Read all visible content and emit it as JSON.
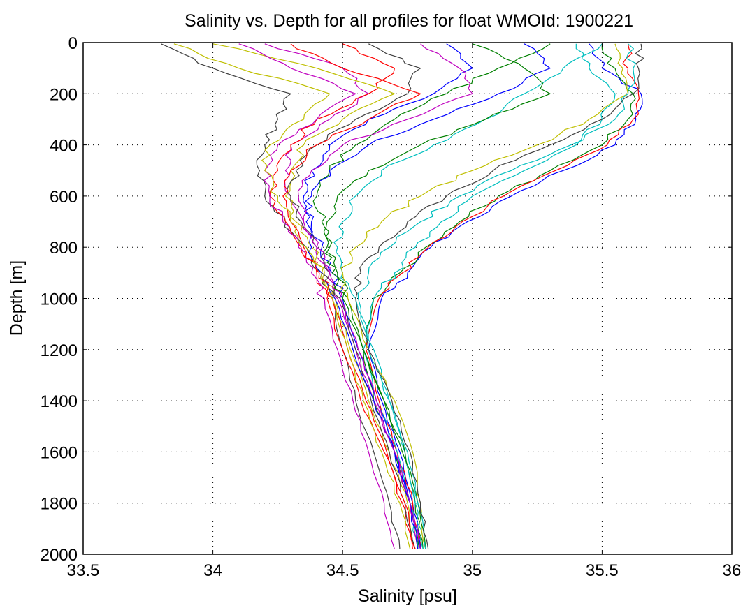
{
  "chart_data": {
    "type": "line",
    "title": "Salinity vs. Depth for all profiles for float WMOId: 1900221",
    "xlabel": "Salinity [psu]",
    "ylabel": "Depth [m]",
    "xlim": [
      33.5,
      36
    ],
    "ylim": [
      0,
      2000
    ],
    "y_reversed": true,
    "x_ticks": [
      "33.5",
      "34",
      "34.5",
      "35",
      "35.5",
      "36"
    ],
    "y_ticks": [
      "0",
      "200",
      "400",
      "600",
      "800",
      "1000",
      "1200",
      "1400",
      "1600",
      "1800",
      "2000"
    ],
    "grid": true,
    "legend": "none",
    "series_colors": [
      "#0000ff",
      "#008000",
      "#ff0000",
      "#00bfbf",
      "#bf00bf",
      "#bfbf00",
      "#404040"
    ],
    "series": [
      {
        "depth": [
          5,
          100,
          200,
          300,
          400,
          500,
          600,
          700,
          800,
          900,
          1000,
          1200,
          1400,
          1600,
          1800,
          1980
        ],
        "salinity": [
          35.45,
          35.5,
          35.65,
          35.63,
          35.55,
          35.35,
          35.15,
          34.98,
          34.84,
          34.75,
          34.65,
          34.6,
          34.65,
          34.72,
          34.77,
          34.8
        ]
      },
      {
        "depth": [
          5,
          100,
          200,
          300,
          400,
          500,
          600,
          700,
          800,
          900,
          1000,
          1200,
          1400,
          1600,
          1800,
          1980
        ],
        "salinity": [
          35.5,
          35.55,
          35.62,
          35.6,
          35.5,
          35.3,
          35.1,
          34.95,
          34.82,
          34.72,
          34.62,
          34.58,
          34.62,
          34.7,
          34.76,
          34.79
        ]
      },
      {
        "depth": [
          5,
          100,
          200,
          300,
          400,
          500,
          600,
          700,
          800,
          900,
          1000,
          1200,
          1400,
          1600,
          1800,
          1980
        ],
        "salinity": [
          35.6,
          35.6,
          35.64,
          35.62,
          35.52,
          35.32,
          35.12,
          34.96,
          34.83,
          34.73,
          34.64,
          34.59,
          34.64,
          34.71,
          34.77,
          34.8
        ]
      },
      {
        "depth": [
          5,
          100,
          200,
          300,
          400,
          500,
          600,
          700,
          800,
          900,
          1000,
          1200,
          1400,
          1600,
          1800,
          1980
        ],
        "salinity": [
          35.4,
          35.45,
          35.55,
          35.5,
          35.4,
          35.2,
          35.0,
          34.88,
          34.78,
          34.7,
          34.62,
          34.58,
          34.63,
          34.71,
          34.76,
          34.79
        ]
      },
      {
        "depth": [
          5,
          100,
          200,
          300,
          400,
          500,
          600,
          700,
          800,
          900,
          1000,
          1200,
          1400,
          1600,
          1800,
          1980
        ],
        "salinity": [
          34.2,
          34.5,
          34.6,
          34.45,
          34.3,
          34.28,
          34.3,
          34.35,
          34.4,
          34.45,
          34.48,
          34.55,
          34.62,
          34.7,
          34.76,
          34.79
        ]
      },
      {
        "depth": [
          5,
          100,
          200,
          300,
          400,
          500,
          600,
          700,
          800,
          900,
          1000,
          1200,
          1400,
          1600,
          1800,
          1980
        ],
        "salinity": [
          34.0,
          34.4,
          34.7,
          34.5,
          34.35,
          34.3,
          34.28,
          34.32,
          34.38,
          34.43,
          34.47,
          34.53,
          34.6,
          34.68,
          34.75,
          34.78
        ]
      },
      {
        "depth": [
          5,
          100,
          200,
          300,
          400,
          500,
          600,
          700,
          800,
          900,
          1000,
          1200,
          1400,
          1600,
          1800,
          1980
        ],
        "salinity": [
          33.8,
          34.0,
          34.3,
          34.25,
          34.2,
          34.18,
          34.2,
          34.28,
          34.36,
          34.42,
          34.46,
          34.5,
          34.55,
          34.62,
          34.68,
          34.72
        ]
      },
      {
        "depth": [
          5,
          100,
          200,
          300,
          400,
          500,
          600,
          700,
          800,
          900,
          1000,
          1200,
          1400,
          1600,
          1800,
          1980
        ],
        "salinity": [
          34.9,
          35.0,
          34.85,
          34.6,
          34.45,
          34.38,
          34.35,
          34.38,
          34.42,
          34.46,
          34.5,
          34.56,
          34.63,
          34.7,
          34.76,
          34.79
        ]
      },
      {
        "depth": [
          5,
          100,
          200,
          300,
          400,
          500,
          600,
          700,
          800,
          900,
          1000,
          1200,
          1400,
          1600,
          1800,
          1980
        ],
        "salinity": [
          35.3,
          35.1,
          34.9,
          34.7,
          34.55,
          34.45,
          34.4,
          34.42,
          34.45,
          34.48,
          34.52,
          34.58,
          34.66,
          34.73,
          34.78,
          34.81
        ]
      },
      {
        "depth": [
          5,
          100,
          200,
          300,
          400,
          500,
          600,
          700,
          800,
          900,
          1000,
          1200,
          1400,
          1600,
          1800,
          1980
        ],
        "salinity": [
          34.5,
          34.7,
          34.6,
          34.4,
          34.3,
          34.25,
          34.22,
          34.28,
          34.34,
          34.4,
          34.44,
          34.5,
          34.57,
          34.66,
          34.73,
          34.77
        ]
      },
      {
        "depth": [
          5,
          100,
          200,
          300,
          400,
          500,
          600,
          700,
          800,
          900,
          1000,
          1200,
          1400,
          1600,
          1800,
          1980
        ],
        "salinity": [
          35.5,
          35.35,
          35.2,
          35.05,
          34.85,
          34.65,
          34.55,
          34.5,
          34.48,
          34.5,
          34.55,
          34.62,
          34.68,
          34.74,
          34.78,
          34.81
        ]
      },
      {
        "depth": [
          5,
          100,
          200,
          300,
          400,
          500,
          600,
          700,
          800,
          900,
          1000,
          1200,
          1400,
          1600,
          1800,
          1980
        ],
        "salinity": [
          34.1,
          34.3,
          34.55,
          34.4,
          34.25,
          34.2,
          34.22,
          34.27,
          34.33,
          34.38,
          34.43,
          34.48,
          34.54,
          34.6,
          34.66,
          34.7
        ]
      },
      {
        "depth": [
          5,
          100,
          200,
          300,
          400,
          500,
          600,
          700,
          800,
          900,
          1000,
          1200,
          1400,
          1600,
          1800,
          1980
        ],
        "salinity": [
          35.55,
          35.58,
          35.6,
          35.45,
          35.25,
          35.0,
          34.8,
          34.65,
          34.55,
          34.5,
          34.52,
          34.6,
          34.7,
          34.77,
          34.8,
          34.82
        ]
      },
      {
        "depth": [
          5,
          100,
          200,
          300,
          400,
          500,
          600,
          700,
          800,
          900,
          1000,
          1200,
          1400,
          1600,
          1800,
          1980
        ],
        "salinity": [
          34.6,
          34.8,
          34.75,
          34.55,
          34.4,
          34.32,
          34.3,
          34.34,
          34.4,
          34.45,
          34.49,
          34.55,
          34.61,
          34.68,
          34.74,
          34.78
        ]
      },
      {
        "depth": [
          5,
          100,
          200,
          300,
          400,
          500,
          600,
          700,
          800,
          900,
          1000,
          1200,
          1400,
          1600,
          1800,
          1980
        ],
        "salinity": [
          35.2,
          35.3,
          35.1,
          34.85,
          34.6,
          34.45,
          34.38,
          34.36,
          34.38,
          34.42,
          34.47,
          34.54,
          34.62,
          34.7,
          34.76,
          34.8
        ]
      },
      {
        "depth": [
          5,
          100,
          200,
          300,
          400,
          500,
          600,
          700,
          800,
          900,
          1000,
          1200,
          1400,
          1600,
          1800,
          1980
        ],
        "salinity": [
          35.0,
          35.2,
          35.3,
          35.05,
          34.8,
          34.6,
          34.48,
          34.44,
          34.44,
          34.46,
          34.5,
          34.58,
          34.66,
          34.74,
          34.79,
          34.82
        ]
      },
      {
        "depth": [
          5,
          100,
          200,
          300,
          400,
          500,
          600,
          700,
          800,
          900,
          1000,
          1200,
          1400,
          1600,
          1800,
          1980
        ],
        "salinity": [
          34.3,
          34.5,
          34.8,
          34.6,
          34.4,
          34.3,
          34.27,
          34.3,
          34.35,
          34.41,
          34.46,
          34.52,
          34.59,
          34.67,
          34.74,
          34.78
        ]
      },
      {
        "depth": [
          5,
          100,
          200,
          300,
          400,
          500,
          600,
          700,
          800,
          900,
          1000,
          1200,
          1400,
          1600,
          1800,
          1980
        ],
        "salinity": [
          35.6,
          35.62,
          35.6,
          35.55,
          35.38,
          35.15,
          34.95,
          34.8,
          34.68,
          34.6,
          34.56,
          34.6,
          34.68,
          34.75,
          34.79,
          34.82
        ]
      },
      {
        "depth": [
          5,
          100,
          200,
          300,
          400,
          500,
          600,
          700,
          800,
          900,
          1000,
          1200,
          1400,
          1600,
          1800,
          1980
        ],
        "salinity": [
          34.8,
          34.95,
          35.0,
          34.75,
          34.5,
          34.38,
          34.33,
          34.35,
          34.4,
          34.45,
          34.49,
          34.56,
          34.63,
          34.7,
          34.76,
          34.8
        ]
      },
      {
        "depth": [
          5,
          100,
          200,
          300,
          400,
          500,
          600,
          700,
          800,
          900,
          1000,
          1200,
          1400,
          1600,
          1800,
          1980
        ],
        "salinity": [
          33.85,
          34.1,
          34.45,
          34.35,
          34.22,
          34.2,
          34.25,
          34.3,
          34.36,
          34.42,
          34.46,
          34.52,
          34.58,
          34.65,
          34.72,
          34.76
        ]
      },
      {
        "depth": [
          5,
          100,
          200,
          300,
          400,
          500,
          600,
          700,
          800,
          900,
          1000,
          1200,
          1400,
          1600,
          1800,
          1980
        ],
        "salinity": [
          35.65,
          35.64,
          35.62,
          35.5,
          35.3,
          35.08,
          34.9,
          34.75,
          34.64,
          34.57,
          34.55,
          34.6,
          34.69,
          34.76,
          34.8,
          34.83
        ]
      }
    ]
  }
}
